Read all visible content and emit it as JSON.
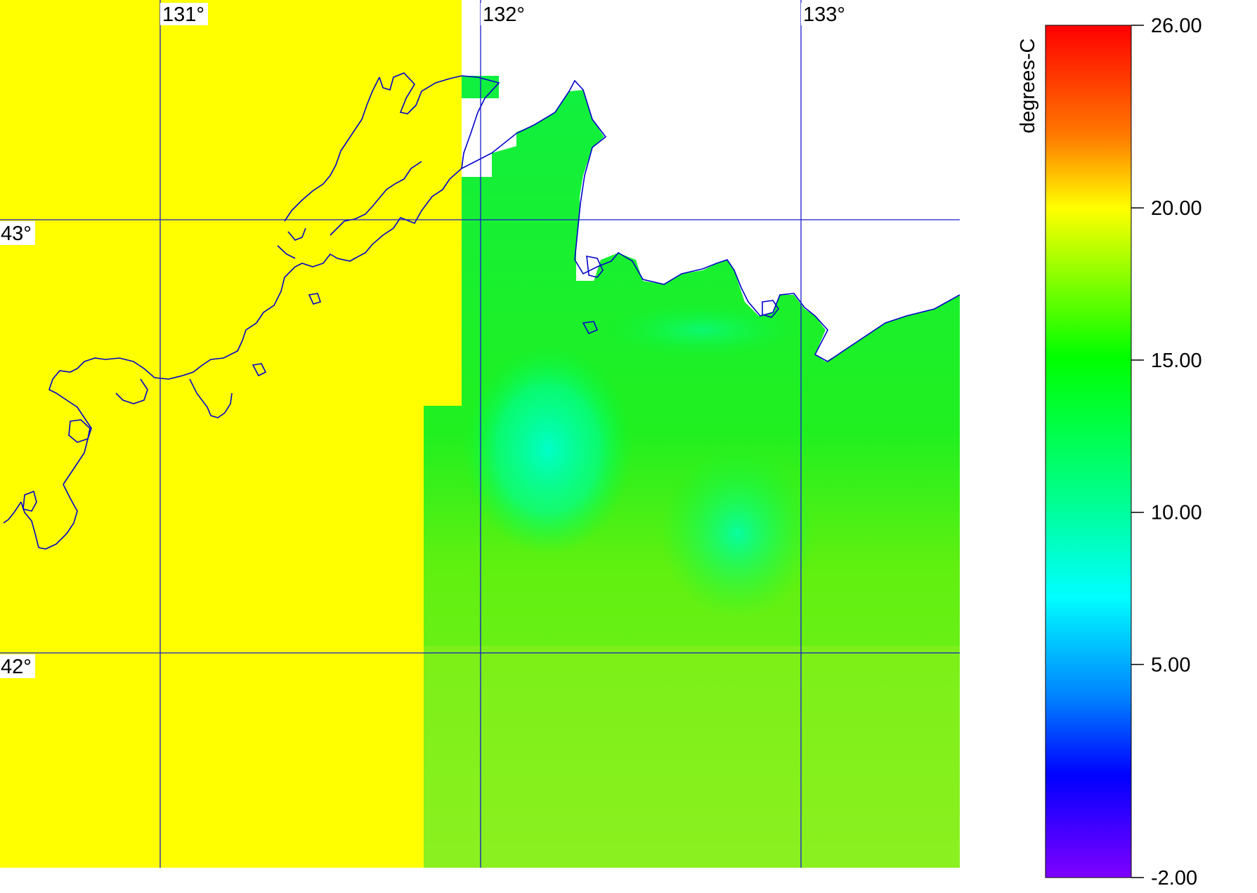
{
  "map": {
    "longitude_labels": [
      "131°",
      "132°",
      "133°"
    ],
    "latitude_labels": [
      "43°",
      "42°"
    ],
    "colors": {
      "land_mask": "#ffff00",
      "coastline": "#0000cc",
      "graticule": "#1a1acc",
      "no_data": "#ffffff"
    }
  },
  "colorbar": {
    "unit": "degrees-C",
    "min": -2.0,
    "max": 26.0,
    "ticks": [
      "26.00",
      "20.00",
      "15.00",
      "10.00",
      "5.00",
      "-2.00"
    ],
    "tick_values": [
      26,
      20,
      15,
      10,
      5,
      -2
    ],
    "gradient_colors": [
      "#ff0000",
      "#ff8000",
      "#ffff00",
      "#00ff00",
      "#00ff80",
      "#00ffff",
      "#0080ff",
      "#0000ff",
      "#8000ff"
    ]
  }
}
